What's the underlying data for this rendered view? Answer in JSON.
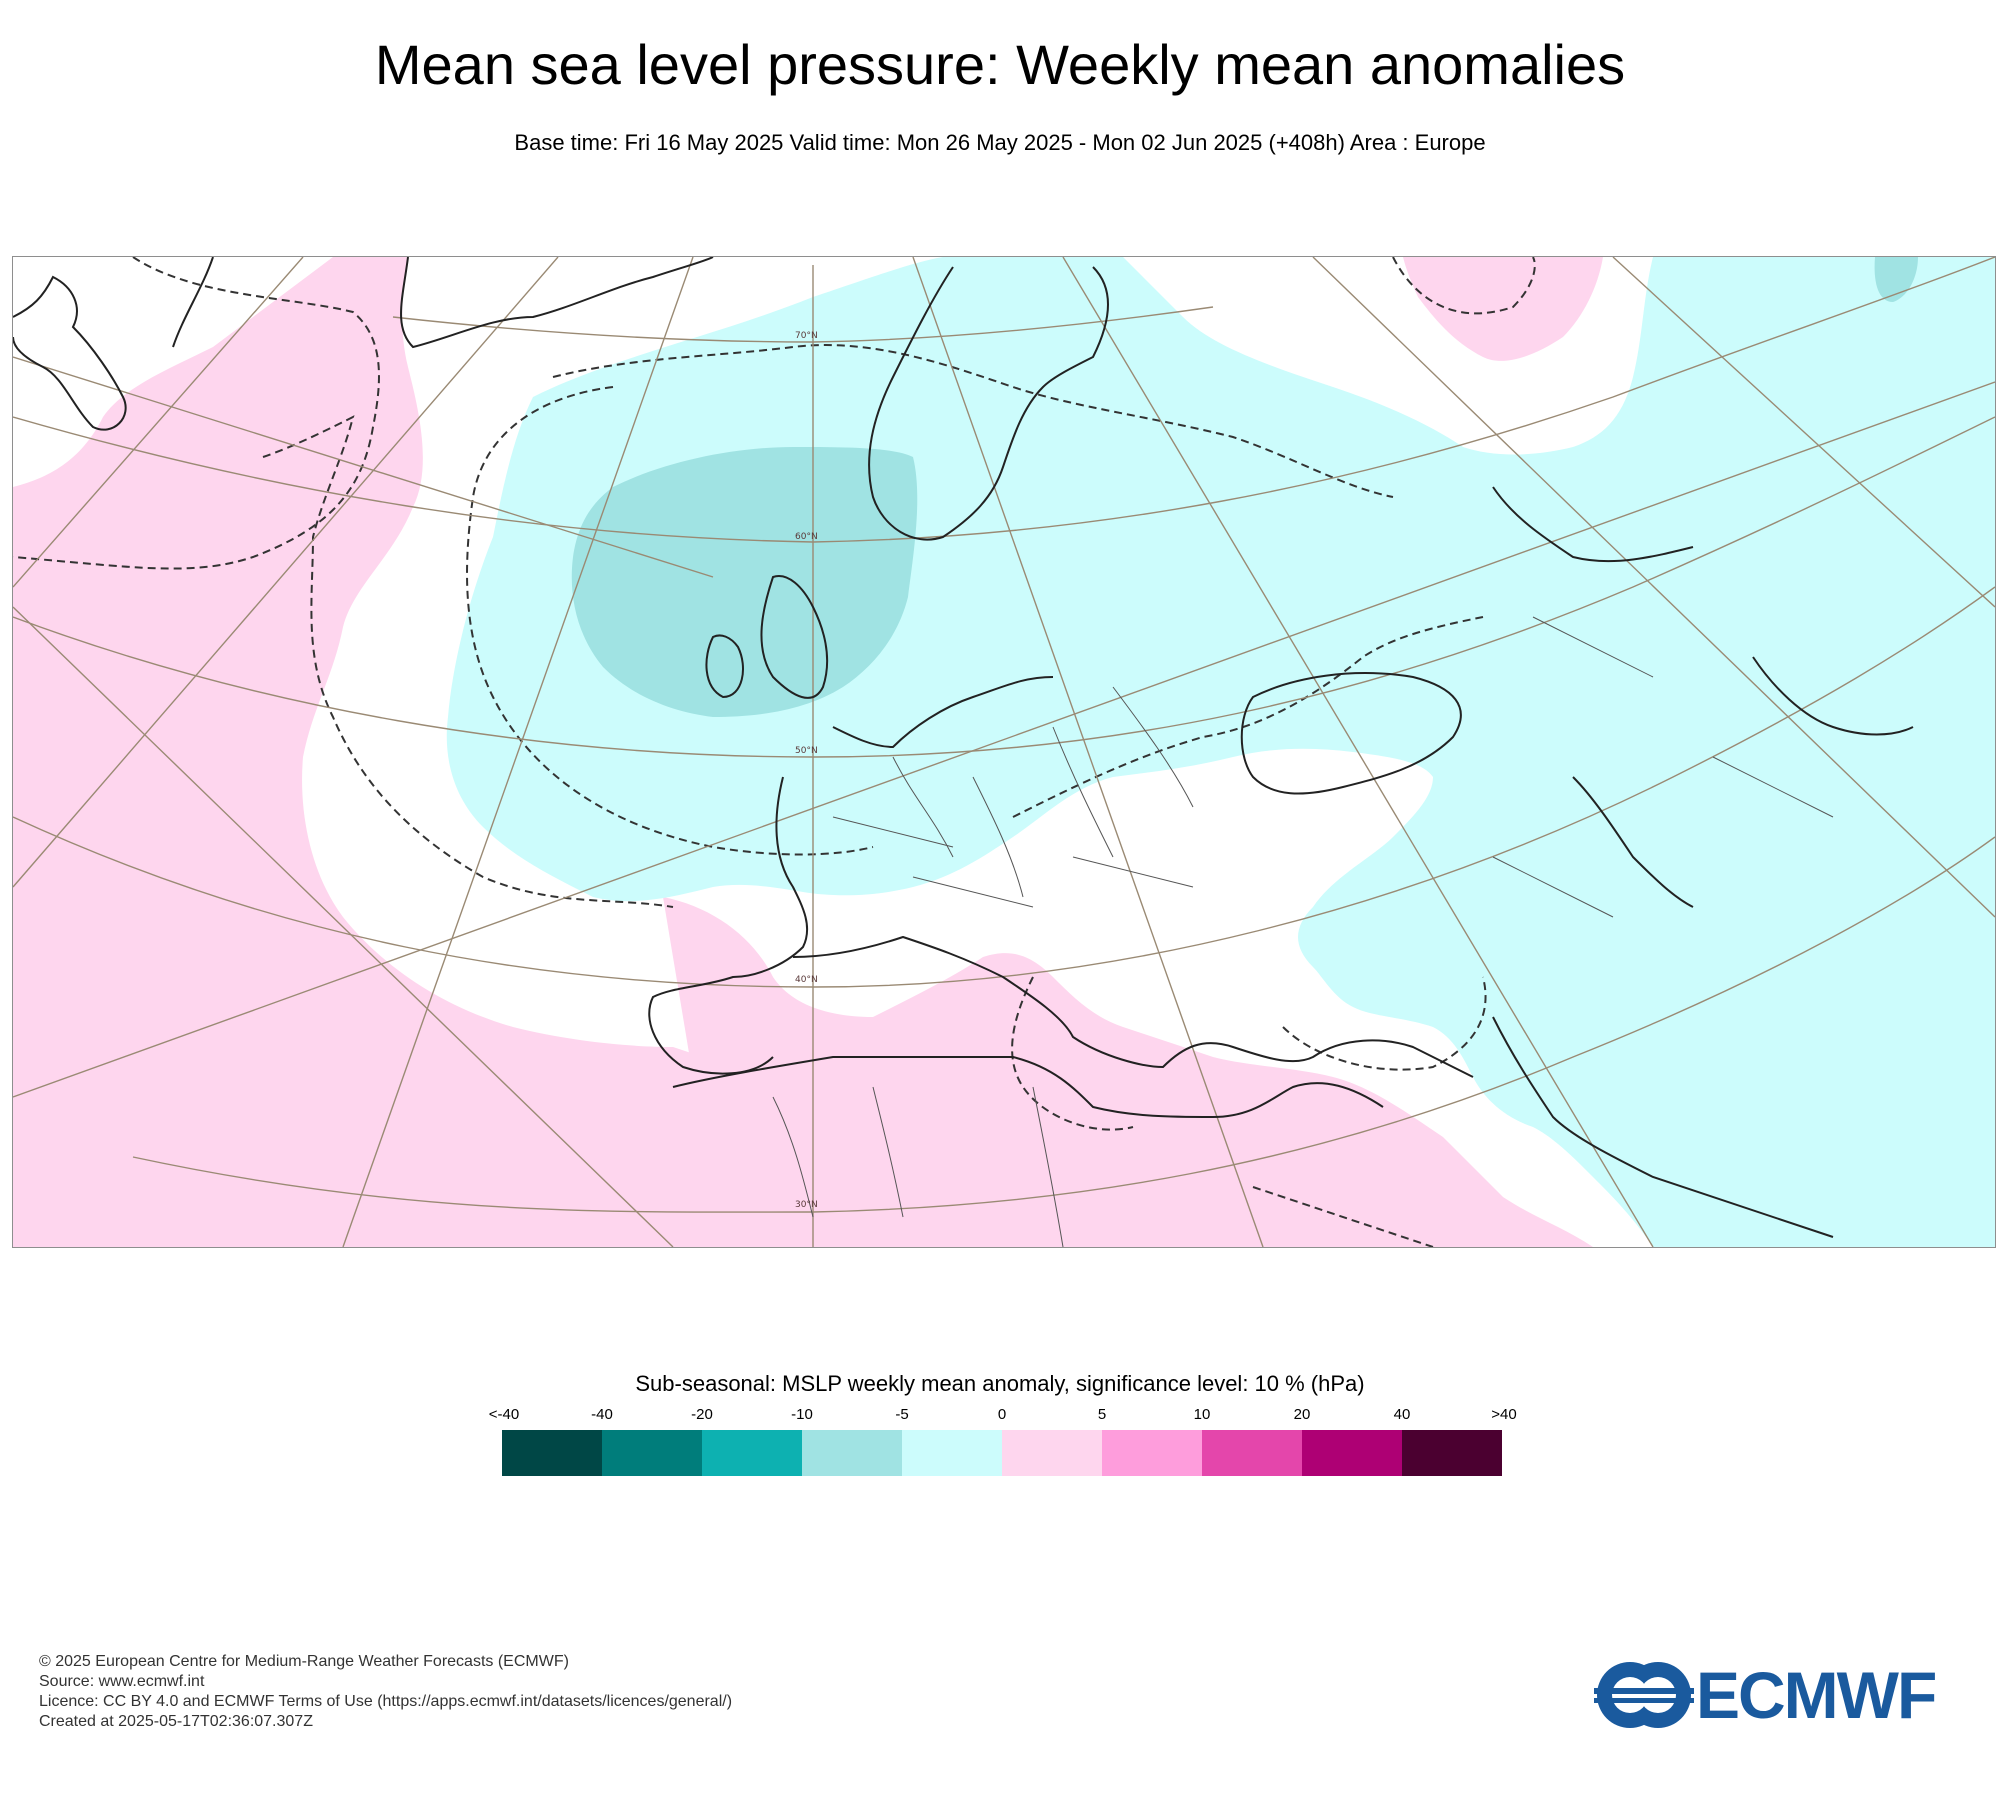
{
  "title": "Mean sea level pressure: Weekly mean anomalies",
  "subtitle": "Base time: Fri 16 May 2025 Valid time: Mon 26 May 2025 - Mon 02 Jun 2025 (+408h) Area : Europe",
  "map": {
    "latitude_labels": [
      "70°N",
      "60°N",
      "50°N",
      "40°N",
      "30°N"
    ],
    "colors": {
      "neg_10_5": "#a0e3e3",
      "neg_5_0": "#ccfcfc",
      "pos_0_5": "#fed6ee",
      "coast": "#222222",
      "graticule": "#9a8a74"
    }
  },
  "colorbar": {
    "title": "Sub-seasonal: MSLP weekly mean anomaly, significance level: 10 % (hPa)",
    "ticks": [
      "<-40",
      "-40",
      "-20",
      "-10",
      "-5",
      "0",
      "5",
      "10",
      "20",
      "40",
      ">40"
    ],
    "colors": [
      "#004746",
      "#007d7b",
      "#0db1b1",
      "#a0e3e3",
      "#ccfcfc",
      "#fed6ee",
      "#fe9ddc",
      "#e446ab",
      "#ae0074",
      "#4b0030"
    ]
  },
  "footer": {
    "copyright": "© 2025 European Centre for Medium-Range Weather Forecasts (ECMWF)",
    "source": "Source: www.ecmwf.int",
    "licence": "Licence: CC BY 4.0 and ECMWF Terms of Use (https://apps.ecmwf.int/datasets/licences/general/)",
    "created": "Created at 2025-05-17T02:36:07.307Z"
  },
  "logo": {
    "text": "ECMWF",
    "color": "#1a5a9e"
  }
}
